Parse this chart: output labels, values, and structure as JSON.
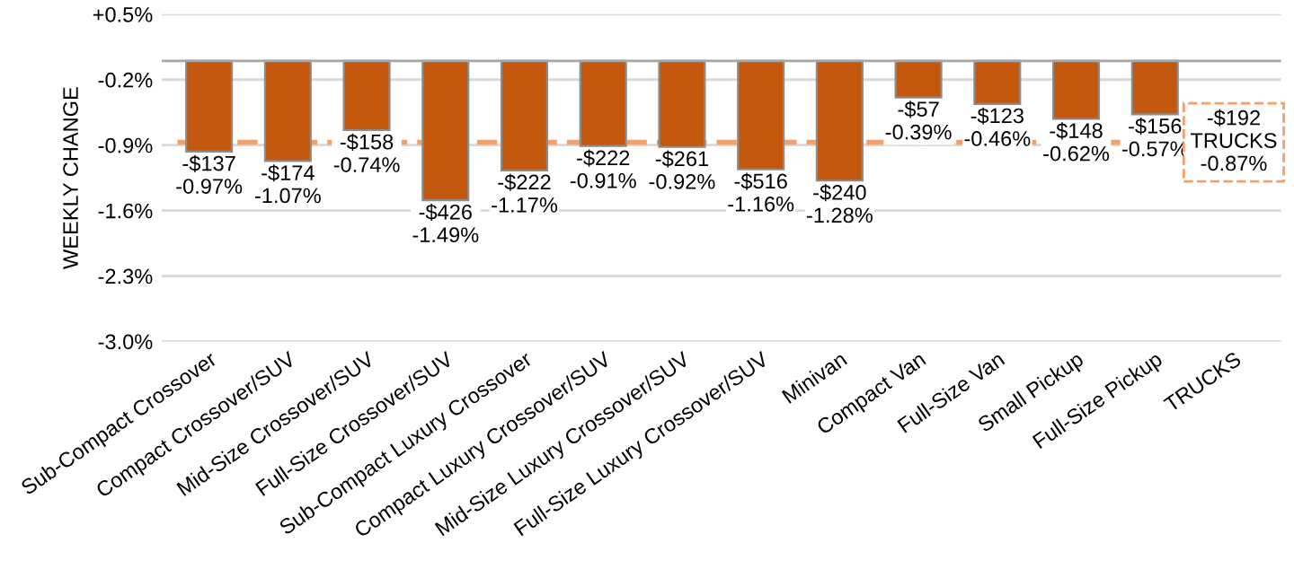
{
  "chart_data": {
    "type": "bar",
    "ylabel": "WEEKLY CHANGE",
    "categories": [
      "Sub-Compact Crossover",
      "Compact Crossover/SUV",
      "Mid-Size Crossover/SUV",
      "Full-Size Crossover/SUV",
      "Sub-Compact Luxury Crossover",
      "Compact Luxury Crossover/SUV",
      "Mid-Size Luxury Crossover/SUV",
      "Full-Size Luxury Crossover/SUV",
      "Minivan",
      "Compact Van",
      "Full-Size Van",
      "Small Pickup",
      "Full-Size Pickup",
      "TRUCKS"
    ],
    "series": [
      {
        "color": "#c4580f",
        "values": [
          -0.97,
          -1.07,
          -0.74,
          -1.49,
          -1.17,
          -0.91,
          -0.92,
          -1.16,
          -1.28,
          -0.39,
          -0.46,
          -0.62,
          -0.57,
          null
        ],
        "value_labels": [
          "-$137\n-0.97%",
          "-$174\n-1.07%",
          "-$158\n-0.74%",
          "-$426\n-1.49%",
          "-$222\n-1.17%",
          "-$222\n-0.91%",
          "-$261\n-0.92%",
          "-$516\n-1.16%",
          "-$240\n-1.28%",
          "-$57\n-0.39%",
          "-$123\n-0.46%",
          "-$148\n-0.62%",
          "-$156\n-0.57%",
          null
        ]
      }
    ],
    "ylim": [
      -3.0,
      0.5
    ],
    "yticks": [
      {
        "value": 0.5,
        "label": "+0.5%"
      },
      {
        "value": -0.2,
        "label": "-0.2%"
      },
      {
        "value": -0.9,
        "label": "-0.9%"
      },
      {
        "value": -1.6,
        "label": "-1.6%"
      },
      {
        "value": -2.3,
        "label": "-2.3%"
      },
      {
        "value": -3.0,
        "label": "-3.0%"
      }
    ],
    "ref_lines": [
      {
        "axis": "y",
        "value": -0.87,
        "label": "-$192\nTRUCKS\n-0.87%",
        "color": "#f4a06a",
        "line_style": "dashed"
      }
    ],
    "grid": "y",
    "legend": false
  }
}
